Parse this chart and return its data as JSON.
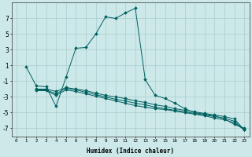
{
  "xlabel": "Humidex (Indice chaleur)",
  "ylabel": "",
  "background_color": "#cce8e8",
  "grid_color": "#aacece",
  "line_color": "#006060",
  "xlim": [
    -0.5,
    23.5
  ],
  "ylim": [
    -8,
    9
  ],
  "xticks": [
    0,
    1,
    2,
    3,
    4,
    5,
    6,
    7,
    8,
    9,
    10,
    11,
    12,
    13,
    14,
    15,
    16,
    17,
    18,
    19,
    20,
    21,
    22,
    23
  ],
  "yticks": [
    -7,
    -5,
    -3,
    -1,
    1,
    3,
    5,
    7
  ],
  "series": [
    {
      "x": [
        1,
        2,
        3,
        4,
        5,
        6,
        7,
        8,
        9,
        10,
        11,
        12,
        13,
        14,
        15,
        16,
        17,
        18,
        19,
        20,
        21,
        22,
        23
      ],
      "y": [
        0.8,
        -1.6,
        -1.7,
        -4.2,
        -0.5,
        3.2,
        3.3,
        5.0,
        7.2,
        7.0,
        7.7,
        8.3,
        -0.8,
        -2.8,
        -3.2,
        -3.8,
        -4.5,
        -5.0,
        -5.2,
        -5.4,
        -5.8,
        -6.5,
        -7.0
      ]
    },
    {
      "x": [
        2,
        3,
        4,
        5,
        6,
        7,
        8,
        9,
        10,
        11,
        12,
        13,
        14,
        15,
        16,
        17,
        18,
        19,
        20,
        21,
        22,
        23
      ],
      "y": [
        -2.0,
        -2.0,
        -2.3,
        -1.8,
        -2.0,
        -2.2,
        -2.5,
        -2.8,
        -3.0,
        -3.2,
        -3.5,
        -3.7,
        -4.0,
        -4.2,
        -4.5,
        -4.7,
        -4.9,
        -5.1,
        -5.3,
        -5.5,
        -5.8,
        -7.2
      ]
    },
    {
      "x": [
        2,
        3,
        4,
        5,
        6,
        7,
        8,
        9,
        10,
        11,
        12,
        13,
        14,
        15,
        16,
        17,
        18,
        19,
        20,
        21,
        22,
        23
      ],
      "y": [
        -2.1,
        -2.1,
        -2.6,
        -1.9,
        -2.1,
        -2.4,
        -2.7,
        -3.0,
        -3.3,
        -3.5,
        -3.8,
        -4.0,
        -4.3,
        -4.5,
        -4.7,
        -4.9,
        -5.1,
        -5.3,
        -5.5,
        -5.7,
        -6.1,
        -7.2
      ]
    },
    {
      "x": [
        2,
        3,
        4,
        5,
        6,
        7,
        8,
        9,
        10,
        11,
        12,
        13,
        14,
        15,
        16,
        17,
        18,
        19,
        20,
        21,
        22,
        23
      ],
      "y": [
        -2.2,
        -2.2,
        -2.8,
        -2.1,
        -2.3,
        -2.6,
        -2.9,
        -3.2,
        -3.5,
        -3.8,
        -4.1,
        -4.3,
        -4.5,
        -4.6,
        -4.8,
        -5.0,
        -5.2,
        -5.4,
        -5.7,
        -5.9,
        -6.3,
        -7.2
      ]
    }
  ]
}
